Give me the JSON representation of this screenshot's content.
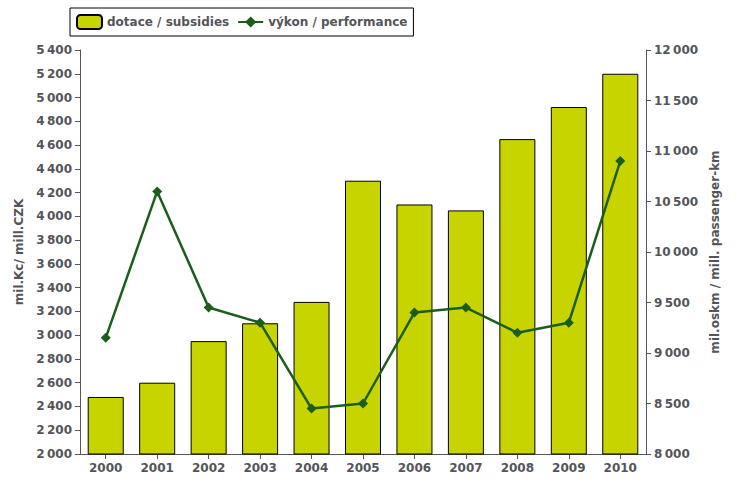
{
  "chart_data": {
    "type": "bar",
    "categories": [
      "2000",
      "2001",
      "2002",
      "2003",
      "2004",
      "2005",
      "2006",
      "2007",
      "2008",
      "2009",
      "2010"
    ],
    "series": [
      {
        "name": "dotace / subsidies",
        "type": "bar",
        "color": "#c8d400",
        "values": [
          2480,
          2600,
          2950,
          3100,
          3280,
          4300,
          4100,
          4050,
          4650,
          4920,
          5200
        ]
      },
      {
        "name": "výkon / performance",
        "type": "line",
        "axis": "y2",
        "color": "#1a5e1a",
        "marker": "diamond",
        "values": [
          9150,
          10600,
          9450,
          9300,
          8450,
          8500,
          9400,
          9450,
          9200,
          9300,
          10900
        ]
      }
    ],
    "ylabel": "mil.Kc/ mill.CZK",
    "y2label": "mil.oskm / mill. passenger-km",
    "ylim": [
      2000,
      5400
    ],
    "yticks": [
      {
        "value": 2000,
        "label": "2 000"
      },
      {
        "value": 2200,
        "label": "2 200"
      },
      {
        "value": 2400,
        "label": "2 400"
      },
      {
        "value": 2600,
        "label": "2 600"
      },
      {
        "value": 2800,
        "label": "2 800"
      },
      {
        "value": 3000,
        "label": "3 000"
      },
      {
        "value": 3200,
        "label": "3 200"
      },
      {
        "value": 3400,
        "label": "3 400"
      },
      {
        "value": 3600,
        "label": "3 600"
      },
      {
        "value": 3800,
        "label": "3 800"
      },
      {
        "value": 4000,
        "label": "4 000"
      },
      {
        "value": 4200,
        "label": "4 200"
      },
      {
        "value": 4400,
        "label": "4 400"
      },
      {
        "value": 4600,
        "label": "4 600"
      },
      {
        "value": 4800,
        "label": "4 800"
      },
      {
        "value": 5000,
        "label": "5 000"
      },
      {
        "value": 5200,
        "label": "5 200"
      },
      {
        "value": 5400,
        "label": "5 400"
      }
    ],
    "y2lim": [
      8000,
      12000
    ],
    "y2ticks": [
      {
        "value": 8000,
        "label": "8 000"
      },
      {
        "value": 8500,
        "label": "8 500"
      },
      {
        "value": 9000,
        "label": "9 000"
      },
      {
        "value": 9500,
        "label": "9 500"
      },
      {
        "value": 10000,
        "label": "10 000"
      },
      {
        "value": 10500,
        "label": "10 500"
      },
      {
        "value": 11000,
        "label": "11 000"
      },
      {
        "value": 11500,
        "label": "11 500"
      },
      {
        "value": 12000,
        "label": "12 000"
      }
    ],
    "grid": false,
    "legend": "upper left"
  }
}
